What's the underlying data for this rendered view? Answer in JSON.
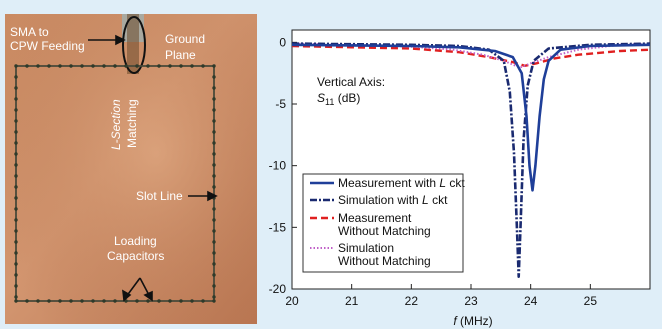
{
  "photo": {
    "labels": {
      "sma_line1": "SMA to",
      "sma_line2": "CPW Feeding",
      "ground_line1": "Ground",
      "ground_line2": "Plane",
      "lsection_line1": "L-Section",
      "lsection_line2": "Matching",
      "slot": "Slot Line",
      "loading_line1": "Loading",
      "loading_line2": "Capacitors"
    }
  },
  "chart_data": {
    "type": "line",
    "xlabel_var": "f",
    "xlabel_unit": " (MHz)",
    "xlim": [
      20,
      26
    ],
    "ylim": [
      -20,
      1
    ],
    "xticks": [
      20,
      21,
      22,
      23,
      24,
      25
    ],
    "yticks": [
      0,
      -5,
      -10,
      -15,
      -20
    ],
    "annotation_line1": "Vertical Axis:",
    "annotation_var": "S",
    "annotation_sub": "11",
    "annotation_unit": " (dB)",
    "grid": false,
    "legend_position": "bottom-left",
    "series": [
      {
        "name": "Measurement with L ckt",
        "color": "#1f3f99",
        "style": "solid",
        "points": [
          [
            20,
            -0.2
          ],
          [
            21,
            -0.25
          ],
          [
            22,
            -0.3
          ],
          [
            22.8,
            -0.4
          ],
          [
            23.4,
            -0.7
          ],
          [
            23.7,
            -1.2
          ],
          [
            23.85,
            -2.5
          ],
          [
            23.93,
            -6
          ],
          [
            23.98,
            -10
          ],
          [
            24.03,
            -12
          ],
          [
            24.08,
            -10
          ],
          [
            24.15,
            -6
          ],
          [
            24.22,
            -3
          ],
          [
            24.3,
            -1.5
          ],
          [
            24.5,
            -0.6
          ],
          [
            25,
            -0.3
          ],
          [
            26,
            -0.2
          ]
        ]
      },
      {
        "name": "Simulation with L ckt",
        "color": "#1a2a70",
        "style": "dashdot",
        "points": [
          [
            20,
            -0.1
          ],
          [
            21,
            -0.15
          ],
          [
            22,
            -0.2
          ],
          [
            22.8,
            -0.3
          ],
          [
            23.3,
            -0.6
          ],
          [
            23.55,
            -1.5
          ],
          [
            23.65,
            -4
          ],
          [
            23.72,
            -9
          ],
          [
            23.77,
            -15
          ],
          [
            23.8,
            -19
          ],
          [
            23.83,
            -15
          ],
          [
            23.88,
            -8
          ],
          [
            23.95,
            -3.5
          ],
          [
            24.05,
            -1.5
          ],
          [
            24.3,
            -0.5
          ],
          [
            25,
            -0.2
          ],
          [
            26,
            -0.1
          ]
        ]
      },
      {
        "name": "Measurement Without Matching",
        "color": "#e02020",
        "style": "dashed",
        "points": [
          [
            20,
            -0.3
          ],
          [
            21,
            -0.4
          ],
          [
            22,
            -0.5
          ],
          [
            22.8,
            -0.8
          ],
          [
            23.3,
            -1.2
          ],
          [
            23.7,
            -1.6
          ],
          [
            23.9,
            -1.9
          ],
          [
            24.1,
            -1.7
          ],
          [
            24.4,
            -1.3
          ],
          [
            24.8,
            -1.0
          ],
          [
            25.5,
            -0.7
          ],
          [
            26,
            -0.6
          ]
        ]
      },
      {
        "name": "Simulation Without Matching",
        "color": "#c060c8",
        "style": "dotted",
        "points": [
          [
            20,
            -0.1
          ],
          [
            21,
            -0.2
          ],
          [
            22,
            -0.35
          ],
          [
            22.7,
            -0.6
          ],
          [
            23.2,
            -1.0
          ],
          [
            23.55,
            -1.5
          ],
          [
            23.75,
            -1.9
          ],
          [
            23.85,
            -2.0
          ],
          [
            24.0,
            -1.7
          ],
          [
            24.3,
            -1.2
          ],
          [
            24.8,
            -0.6
          ],
          [
            25.5,
            -0.2
          ],
          [
            26,
            -0.1
          ]
        ]
      }
    ],
    "legend_entries": [
      {
        "line1": "Measurement with ",
        "var": "L",
        "tail": " ckt"
      },
      {
        "line1": "Simulation with ",
        "var": "L",
        "tail": " ckt"
      },
      {
        "line1": "Measurement",
        "line2": "Without Matching"
      },
      {
        "line1": "Simulation",
        "line2": "Without Matching"
      }
    ]
  }
}
